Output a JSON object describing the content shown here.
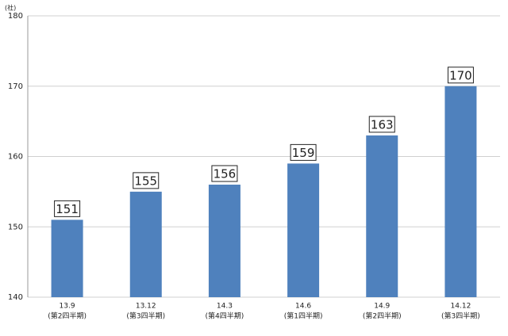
{
  "chart_data": {
    "type": "bar",
    "unit_label": "(社)",
    "categories": [
      [
        "13.9",
        "(第2四半期)"
      ],
      [
        "13.12",
        "(第3四半期)"
      ],
      [
        "14.3",
        "(第4四半期)"
      ],
      [
        "14.6",
        "(第1四半期)"
      ],
      [
        "14.9",
        "(第2四半期)"
      ],
      [
        "14.12",
        "(第3四半期)"
      ]
    ],
    "values": [
      151,
      155,
      156,
      159,
      163,
      170
    ],
    "color": "#4f81bd",
    "ylim": [
      140,
      180
    ],
    "yticks": [
      140,
      150,
      160,
      170,
      180
    ],
    "grid": true
  }
}
